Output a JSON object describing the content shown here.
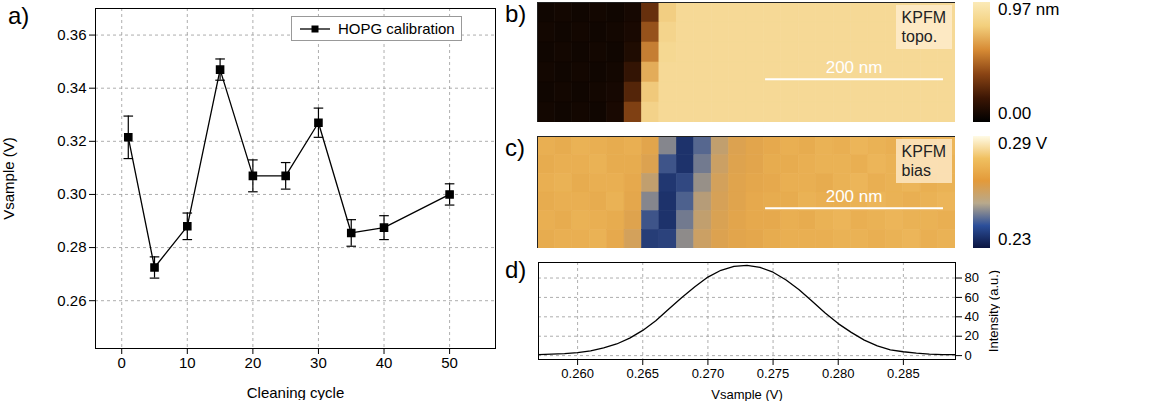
{
  "chart_data": [
    {
      "panel_label": "a)",
      "type": "line",
      "xlabel": "Cleaning cycle",
      "ylabel": "Vsample (V)",
      "x": [
        1,
        5,
        10,
        15,
        20,
        25,
        30,
        35,
        40,
        50
      ],
      "series": [
        {
          "name": "HOPG calibration",
          "color": "#000000",
          "marker": "square",
          "line_style": "solid",
          "values": [
            0.3215,
            0.2725,
            0.288,
            0.347,
            0.307,
            0.307,
            0.327,
            0.2855,
            0.2875,
            0.3
          ],
          "errors": [
            0.008,
            0.004,
            0.005,
            0.004,
            0.006,
            0.005,
            0.0055,
            0.005,
            0.0045,
            0.004
          ]
        }
      ],
      "xlim": [
        -4,
        57
      ],
      "xticks": [
        0,
        10,
        20,
        30,
        40,
        50
      ],
      "ylim": [
        0.242,
        0.37
      ],
      "yticks": [
        0.26,
        0.28,
        {
          "value": 0.3,
          "label": "0.30"
        },
        0.32,
        0.34,
        0.36
      ],
      "grid": true,
      "legend": "top right"
    },
    {
      "panel_label": "b)",
      "type": "heatmap",
      "title": "KPFM topo.",
      "tick_labels": false,
      "xlim": [
        0,
        470
      ],
      "ylim": [
        0,
        135
      ],
      "cells": [
        [
          0.05,
          0.06,
          0.05,
          0.06,
          0.05,
          0.07,
          0.3,
          0.8,
          0.86,
          0.86,
          0.86,
          0.86,
          0.86,
          0.86,
          0.86,
          0.86,
          0.86,
          0.86,
          0.86,
          0.86,
          0.86,
          0.86,
          0.86,
          0.86
        ],
        [
          0.06,
          0.05,
          0.06,
          0.05,
          0.06,
          0.08,
          0.42,
          0.83,
          0.86,
          0.86,
          0.86,
          0.86,
          0.86,
          0.86,
          0.86,
          0.86,
          0.86,
          0.86,
          0.86,
          0.86,
          0.86,
          0.86,
          0.86,
          0.86
        ],
        [
          0.05,
          0.06,
          0.05,
          0.06,
          0.05,
          0.1,
          0.55,
          0.85,
          0.86,
          0.86,
          0.86,
          0.86,
          0.86,
          0.86,
          0.86,
          0.86,
          0.86,
          0.86,
          0.86,
          0.86,
          0.86,
          0.86,
          0.86,
          0.86
        ],
        [
          0.06,
          0.05,
          0.06,
          0.05,
          0.06,
          0.16,
          0.68,
          0.86,
          0.86,
          0.86,
          0.86,
          0.86,
          0.86,
          0.86,
          0.86,
          0.86,
          0.86,
          0.86,
          0.86,
          0.86,
          0.86,
          0.86,
          0.86,
          0.86
        ],
        [
          0.05,
          0.06,
          0.05,
          0.06,
          0.07,
          0.25,
          0.78,
          0.86,
          0.86,
          0.86,
          0.86,
          0.86,
          0.86,
          0.86,
          0.86,
          0.86,
          0.86,
          0.86,
          0.86,
          0.86,
          0.86,
          0.86,
          0.86,
          0.86
        ],
        [
          0.06,
          0.05,
          0.06,
          0.05,
          0.08,
          0.36,
          0.82,
          0.86,
          0.86,
          0.86,
          0.86,
          0.86,
          0.86,
          0.86,
          0.86,
          0.86,
          0.86,
          0.86,
          0.86,
          0.86,
          0.86,
          0.86,
          0.86,
          0.86
        ]
      ],
      "colorbar": {
        "range": [
          0,
          0.97
        ],
        "ticks": [
          {
            "value": 0.97,
            "label": "0.97 nm"
          },
          {
            "value": 0,
            "label": "0.00"
          }
        ]
      },
      "scale_bar": {
        "length": 200,
        "label": "200 nm"
      }
    },
    {
      "panel_label": "c)",
      "type": "heatmap",
      "title": "KPFM bias",
      "tick_labels": false,
      "xlim": [
        0,
        470
      ],
      "ylim": [
        0,
        126
      ],
      "cells": [
        [
          0.272,
          0.271,
          0.273,
          0.272,
          0.271,
          0.272,
          0.268,
          0.25,
          0.236,
          0.245,
          0.258,
          0.265,
          0.268,
          0.27,
          0.272,
          0.271,
          0.273,
          0.272,
          0.274,
          0.273,
          0.272,
          0.274,
          0.273,
          0.274
        ],
        [
          0.271,
          0.272,
          0.272,
          0.273,
          0.271,
          0.271,
          0.265,
          0.242,
          0.236,
          0.248,
          0.26,
          0.266,
          0.268,
          0.271,
          0.271,
          0.272,
          0.273,
          0.273,
          0.272,
          0.274,
          0.273,
          0.273,
          0.274,
          0.273
        ],
        [
          0.272,
          0.273,
          0.271,
          0.272,
          0.272,
          0.27,
          0.258,
          0.237,
          0.24,
          0.252,
          0.262,
          0.267,
          0.269,
          0.27,
          0.272,
          0.272,
          0.271,
          0.273,
          0.274,
          0.272,
          0.273,
          0.274,
          0.272,
          0.273
        ],
        [
          0.271,
          0.272,
          0.272,
          0.271,
          0.273,
          0.269,
          0.25,
          0.236,
          0.244,
          0.256,
          0.263,
          0.267,
          0.27,
          0.271,
          0.271,
          0.273,
          0.272,
          0.272,
          0.273,
          0.274,
          0.273,
          0.272,
          0.273,
          0.274
        ],
        [
          0.272,
          0.271,
          0.273,
          0.272,
          0.271,
          0.266,
          0.242,
          0.236,
          0.248,
          0.258,
          0.264,
          0.268,
          0.27,
          0.27,
          0.272,
          0.271,
          0.273,
          0.274,
          0.272,
          0.273,
          0.274,
          0.273,
          0.273,
          0.272
        ],
        [
          0.271,
          0.272,
          0.272,
          0.273,
          0.27,
          0.262,
          0.238,
          0.239,
          0.251,
          0.26,
          0.265,
          0.268,
          0.269,
          0.271,
          0.272,
          0.272,
          0.272,
          0.273,
          0.273,
          0.272,
          0.273,
          0.274,
          0.272,
          0.273
        ]
      ],
      "colorbar": {
        "range": [
          0.23,
          0.29
        ],
        "ticks": [
          {
            "value": 0.29,
            "label": "0.29 V"
          },
          {
            "value": 0.23,
            "label": "0.23"
          }
        ]
      },
      "scale_bar": {
        "length": 200,
        "label": "200 nm"
      }
    },
    {
      "panel_label": "d)",
      "type": "line",
      "xlabel": "Vsample (V)",
      "ylabel": "Intensity (a.u.)",
      "x": [
        0.257,
        0.258,
        0.259,
        0.26,
        0.261,
        0.262,
        0.263,
        0.264,
        0.265,
        0.266,
        0.267,
        0.268,
        0.269,
        0.27,
        0.271,
        0.272,
        0.273,
        0.274,
        0.275,
        0.276,
        0.277,
        0.278,
        0.279,
        0.28,
        0.281,
        0.282,
        0.283,
        0.284,
        0.285,
        0.286,
        0.287,
        0.288,
        0.289
      ],
      "series": [
        {
          "color": "#000000",
          "axis": "y2",
          "line_style": "solid",
          "values": [
            1,
            1.5,
            2,
            3,
            5,
            8,
            12,
            18,
            26,
            36,
            48,
            60,
            71,
            81,
            88,
            92,
            93,
            91,
            86,
            78,
            68,
            56,
            44,
            33,
            24,
            16,
            10,
            6,
            4,
            2.5,
            1.5,
            1,
            1
          ]
        }
      ],
      "xlim": [
        0.257,
        0.289
      ],
      "xticks": [
        {
          "value": 0.26,
          "label": "0.260"
        },
        0.265,
        {
          "value": 0.27,
          "label": "0.270"
        },
        0.275,
        {
          "value": 0.28,
          "label": "0.280"
        },
        0.285
      ],
      "y2lim": [
        -4,
        96
      ],
      "y2ticks": [
        0,
        20,
        40,
        60,
        80
      ],
      "grid": true
    }
  ]
}
